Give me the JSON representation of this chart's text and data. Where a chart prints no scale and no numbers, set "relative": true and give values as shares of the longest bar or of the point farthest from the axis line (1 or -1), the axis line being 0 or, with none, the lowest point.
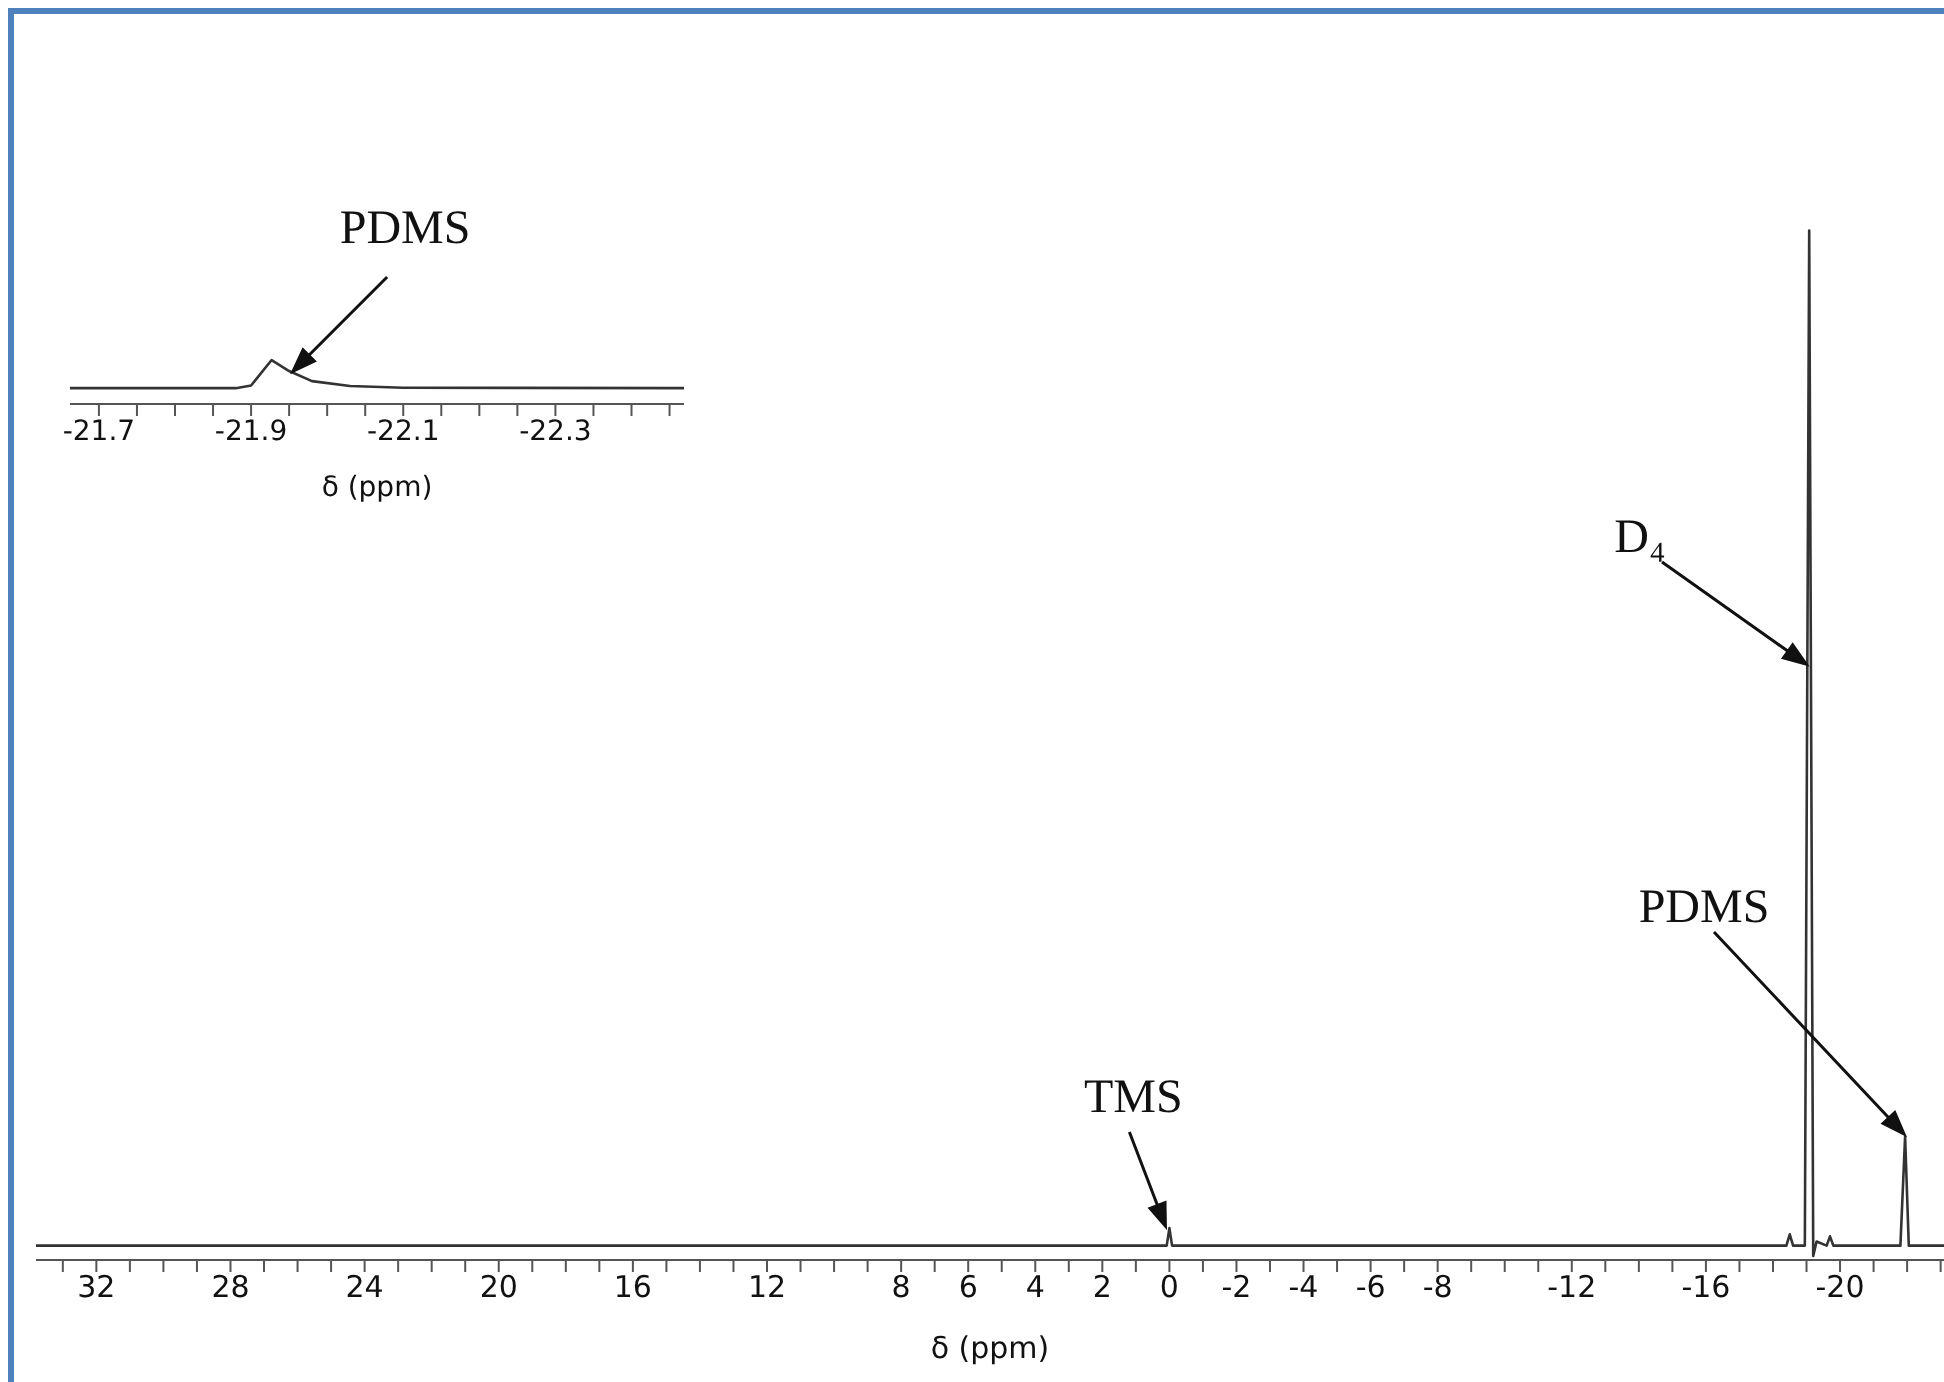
{
  "chart_data": [
    {
      "type": "line",
      "relative": true,
      "xlabel": "δ (ppm)",
      "marker": "none",
      "line_style": "solid",
      "xlim": [
        33.8,
        -23.1
      ],
      "xticks": [
        {
          "value": 33,
          "label": null
        },
        32,
        {
          "value": 31,
          "label": null
        },
        {
          "value": 30,
          "label": null
        },
        {
          "value": 29,
          "label": null
        },
        28,
        {
          "value": 27,
          "label": null
        },
        {
          "value": 26,
          "label": null
        },
        {
          "value": 25,
          "label": null
        },
        24,
        {
          "value": 23,
          "label": null
        },
        {
          "value": 22,
          "label": null
        },
        {
          "value": 21,
          "label": null
        },
        20,
        {
          "value": 19,
          "label": null
        },
        {
          "value": 18,
          "label": null
        },
        {
          "value": 17,
          "label": null
        },
        16,
        {
          "value": 15,
          "label": null
        },
        {
          "value": 14,
          "label": null
        },
        {
          "value": 13,
          "label": null
        },
        12,
        {
          "value": 11,
          "label": null
        },
        {
          "value": 10,
          "label": null
        },
        {
          "value": 9,
          "label": null
        },
        8,
        {
          "value": 7,
          "label": null
        },
        6,
        {
          "value": 5,
          "label": null
        },
        4,
        {
          "value": 3,
          "label": null
        },
        2,
        {
          "value": 1,
          "label": null
        },
        0,
        {
          "value": -1,
          "label": null
        },
        -2,
        {
          "value": -3,
          "label": null
        },
        -4,
        {
          "value": -5,
          "label": null
        },
        -6,
        {
          "value": -7,
          "label": null
        },
        -8,
        {
          "value": -9,
          "label": null
        },
        {
          "value": -10,
          "label": null
        },
        {
          "value": -11,
          "label": null
        },
        -12,
        {
          "value": -13,
          "label": null
        },
        {
          "value": -14,
          "label": null
        },
        {
          "value": -15,
          "label": null
        },
        -16,
        {
          "value": -17,
          "label": null
        },
        {
          "value": -18,
          "label": null
        },
        {
          "value": -19,
          "label": null
        },
        -20,
        {
          "value": -21,
          "label": null
        },
        {
          "value": -22,
          "label": null
        },
        {
          "value": -23,
          "label": null
        }
      ],
      "series": [
        {
          "color": "#333333",
          "x": [
            33.8,
            0.08,
            0,
            -0.08,
            -18.4,
            -18.5,
            -18.6,
            -18.95,
            -19.08,
            -19.2,
            -19.3,
            -19.6,
            -19.7,
            -19.8,
            -21.8,
            -21.94,
            -22.05,
            -23.1
          ],
          "values": [
            0.014,
            0.014,
            0.031,
            0.014,
            0.014,
            0.025,
            0.014,
            0.014,
            1,
            0.004,
            0.018,
            0.014,
            0.023,
            0.014,
            0.014,
            0.12,
            0.014,
            0.014
          ]
        }
      ],
      "annotations": [
        {
          "text": "TMS",
          "x": 0,
          "y": 0.031
        },
        "D₄",
        "PDMS"
      ]
    },
    {
      "type": "line",
      "relative": true,
      "xlabel": "δ (ppm)",
      "marker": "none",
      "line_style": "solid",
      "xlim": [
        -21.662,
        -22.469
      ],
      "xticks": [
        -21.7,
        {
          "value": -21.75,
          "label": null
        },
        {
          "value": -21.8,
          "label": null
        },
        {
          "value": -21.85,
          "label": null
        },
        -21.9,
        {
          "value": -21.95,
          "label": null
        },
        {
          "value": -22,
          "label": null
        },
        {
          "value": -22.05,
          "label": null
        },
        -22.1,
        {
          "value": -22.15,
          "label": null
        },
        {
          "value": -22.2,
          "label": null
        },
        {
          "value": -22.25,
          "label": null
        },
        -22.3,
        {
          "value": -22.35,
          "label": null
        },
        {
          "value": -22.4,
          "label": null
        },
        {
          "value": -22.45,
          "label": null
        }
      ],
      "series": [
        {
          "color": "#333333",
          "x": [
            -21.662,
            -21.88,
            -21.9,
            -21.927,
            -21.95,
            -21.98,
            -22.03,
            -22.1,
            -22.469
          ],
          "values": [
            0.36,
            0.36,
            0.42,
            1,
            0.75,
            0.52,
            0.41,
            0.37,
            0.36
          ]
        }
      ],
      "annotations": [
        {
          "text": "PDMS",
          "x": -21.95,
          "y": 0.75
        }
      ]
    }
  ]
}
